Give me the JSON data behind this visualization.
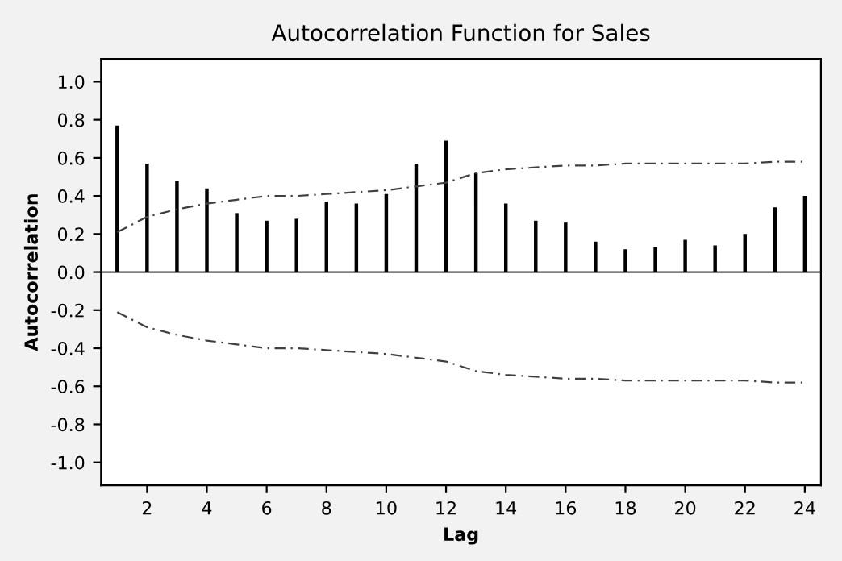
{
  "chart_data": {
    "type": "bar",
    "title": "Autocorrelation Function for Sales",
    "xlabel": "Lag",
    "ylabel": "Autocorrelation",
    "x": [
      1,
      2,
      3,
      4,
      5,
      6,
      7,
      8,
      9,
      10,
      11,
      12,
      13,
      14,
      15,
      16,
      17,
      18,
      19,
      20,
      21,
      22,
      23,
      24
    ],
    "series": [
      {
        "color": "#000000",
        "values": [
          0.77,
          0.57,
          0.48,
          0.44,
          0.31,
          0.27,
          0.28,
          0.37,
          0.36,
          0.41,
          0.57,
          0.69,
          0.52,
          0.36,
          0.27,
          0.26,
          0.16,
          0.12,
          0.13,
          0.17,
          0.14,
          0.2,
          0.34,
          0.4
        ]
      },
      {
        "type": "line",
        "color": "#404040",
        "line_style": "dashed",
        "values": [
          0.21,
          0.29,
          0.33,
          0.36,
          0.38,
          0.4,
          0.4,
          0.41,
          0.42,
          0.43,
          0.45,
          0.47,
          0.52,
          0.54,
          0.55,
          0.56,
          0.56,
          0.57,
          0.57,
          0.57,
          0.57,
          0.57,
          0.58,
          0.58
        ]
      },
      {
        "type": "line",
        "color": "#404040",
        "line_style": "dashed",
        "values": [
          -0.21,
          -0.29,
          -0.33,
          -0.36,
          -0.38,
          -0.4,
          -0.4,
          -0.41,
          -0.42,
          -0.43,
          -0.45,
          -0.47,
          -0.52,
          -0.54,
          -0.55,
          -0.56,
          -0.56,
          -0.57,
          -0.57,
          -0.57,
          -0.57,
          -0.57,
          -0.58,
          -0.58
        ]
      }
    ],
    "ref_lines": [
      {
        "axis": "y",
        "value": 0,
        "color": "#808080"
      }
    ],
    "xlim": [
      0.46,
      24.54
    ],
    "ylim": [
      -1.12,
      1.12
    ],
    "xticks": [
      2,
      4,
      6,
      8,
      10,
      12,
      14,
      16,
      18,
      20,
      22,
      24
    ],
    "yticks": [
      {
        "value": 1,
        "label": "1.0"
      },
      {
        "value": 0.8,
        "label": "0.8"
      },
      {
        "value": 0.6,
        "label": "0.6"
      },
      {
        "value": 0.4,
        "label": "0.4"
      },
      {
        "value": 0.2,
        "label": "0.2"
      },
      {
        "value": 0,
        "label": "0.0"
      },
      {
        "value": -0.2,
        "label": "-0.2"
      },
      {
        "value": -0.4,
        "label": "-0.4"
      },
      {
        "value": -0.6,
        "label": "-0.6"
      },
      {
        "value": -0.8,
        "label": "-0.8"
      },
      {
        "value": -1,
        "label": "-1.0"
      }
    ],
    "grid": false,
    "legend": false
  }
}
